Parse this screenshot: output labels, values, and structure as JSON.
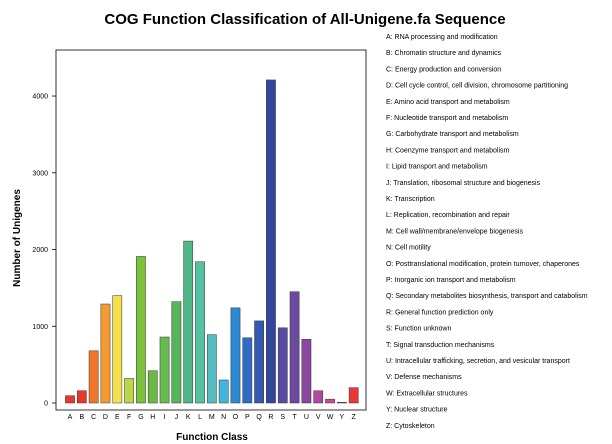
{
  "chart_data": {
    "type": "bar",
    "title": "COG Function Classification of All-Unigene.fa Sequence",
    "xlabel": "Function Class",
    "ylabel": "Number of Unigenes",
    "ylim": [
      0,
      4600
    ],
    "yticks": [
      0,
      1000,
      2000,
      3000,
      4000
    ],
    "grid": false,
    "legend_position": "right",
    "categories": [
      "A",
      "B",
      "C",
      "D",
      "E",
      "F",
      "G",
      "H",
      "I",
      "J",
      "K",
      "L",
      "M",
      "N",
      "O",
      "P",
      "Q",
      "R",
      "S",
      "T",
      "U",
      "V",
      "W",
      "Y",
      "Z"
    ],
    "values": [
      95,
      160,
      680,
      1290,
      1400,
      320,
      1910,
      420,
      860,
      1320,
      2110,
      1840,
      890,
      300,
      1240,
      850,
      1070,
      4210,
      980,
      1450,
      830,
      160,
      50,
      10,
      200
    ],
    "colors": [
      "#e8382e",
      "#e8382e",
      "#f0762c",
      "#f59a32",
      "#f4e04a",
      "#bfd548",
      "#7ac23c",
      "#6ab944",
      "#66bb4c",
      "#56b45a",
      "#4db886",
      "#56c2a2",
      "#52bcc0",
      "#40b6dc",
      "#2c8ad2",
      "#2e6cc4",
      "#3258b2",
      "#32479c",
      "#5a4aa2",
      "#6c4aa0",
      "#8a48a0",
      "#b04aa0",
      "#d04a8c",
      "#e2427a",
      "#e83838"
    ],
    "legend": [
      "A: RNA processing and modification",
      "B: Chromatin structure and dynamics",
      "C: Energy production and conversion",
      "D: Cell cycle control, cell division, chromosome partitioning",
      "E: Amino acid transport and metabolism",
      "F: Nucleotide transport and metabolism",
      "G: Carbohydrate transport and metabolism",
      "H: Coenzyme transport and metabolism",
      "I: Lipid transport and metabolism",
      "J: Translation, ribosomal structure and biogenesis",
      "K: Transcription",
      "L: Replication, recombination and repair",
      "M: Cell wall/membrane/envelope biogenesis",
      "N: Cell motility",
      "O: Posttranslational modification, protein turnover, chaperones",
      "P: Inorganic ion transport and metabolism",
      "Q: Secondary metabolites biosynthesis, transport and catabolism",
      "R: General function prediction only",
      "S: Function unknown",
      "T: Signal transduction mechanisms",
      "U: Intracellular trafficking, secretion, and vesicular transport",
      "V: Defense mechanisms",
      "W: Extracellular structures",
      "Y: Nuclear structure",
      "Z: Cytoskeleton"
    ]
  }
}
